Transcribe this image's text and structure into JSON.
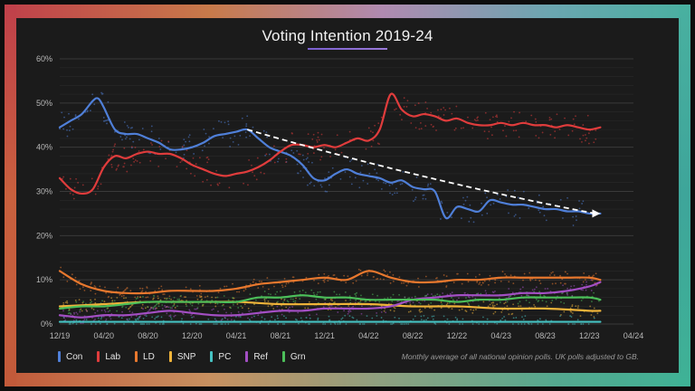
{
  "title": "Voting Intention 2019-24",
  "footnote": "Monthly average of all national opinion polls. UK polls adjusted to GB.",
  "chart_data": {
    "type": "line",
    "title": "Voting Intention 2019-24",
    "x_ticks": [
      "12/19",
      "04/20",
      "08/20",
      "12/20",
      "04/21",
      "08/21",
      "12/21",
      "04/22",
      "08/22",
      "12/22",
      "04/23",
      "08/23",
      "12/23",
      "04/24"
    ],
    "y_ticks": [
      "0%",
      "10%",
      "20%",
      "30%",
      "40%",
      "50%",
      "60%"
    ],
    "ylim": [
      0,
      60
    ],
    "xlim": [
      0,
      52
    ],
    "grid": true,
    "legend_position": "bottom-left",
    "x_month_index_labels": "months since 12/19",
    "series": [
      {
        "name": "Con",
        "color": "#4f7fd8",
        "x": [
          0,
          1,
          2,
          3,
          3.5,
          4,
          5,
          6,
          7,
          8,
          9,
          10,
          11,
          12,
          13,
          14,
          15,
          16,
          17,
          18,
          19,
          20,
          21,
          22,
          23,
          24,
          25,
          26,
          27,
          28,
          29,
          30,
          31,
          32,
          33,
          34,
          35,
          36,
          37,
          38,
          39,
          40,
          41,
          42,
          43,
          44,
          45,
          46,
          47,
          48,
          49
        ],
        "values": [
          44.5,
          46,
          47.5,
          50.5,
          51,
          49,
          44,
          43,
          43,
          42,
          41,
          39.5,
          39.5,
          40,
          41,
          42.5,
          43,
          43.5,
          44,
          42,
          40,
          39,
          38,
          36,
          33,
          32.5,
          34,
          35,
          34,
          33.5,
          33,
          32,
          32.5,
          31,
          30.5,
          30,
          24,
          26.5,
          26,
          25.5,
          28,
          27.5,
          27,
          27,
          26.5,
          26,
          26,
          25.5,
          25.5,
          25,
          25
        ]
      },
      {
        "name": "Lab",
        "color": "#e03c3c",
        "x": [
          0,
          1,
          2,
          3,
          4,
          5,
          6,
          7,
          8,
          9,
          10,
          11,
          12,
          13,
          14,
          15,
          16,
          17,
          18,
          19,
          20,
          21,
          22,
          23,
          24,
          25,
          26,
          27,
          28,
          29,
          30,
          31,
          32,
          33,
          34,
          35,
          36,
          37,
          38,
          39,
          40,
          41,
          42,
          43,
          44,
          45,
          46,
          47,
          48,
          49
        ],
        "values": [
          33,
          30.5,
          29.5,
          30.5,
          35.5,
          38,
          37.5,
          38.5,
          39,
          38.5,
          38.5,
          37.5,
          36,
          35,
          34,
          33.5,
          34,
          34.5,
          35.5,
          37,
          39,
          40.5,
          40.5,
          40,
          40.5,
          40,
          41,
          42,
          41.5,
          44,
          52,
          48.5,
          47,
          47.5,
          47,
          46,
          46.5,
          45.5,
          45,
          45,
          45.5,
          45,
          45.5,
          45,
          45,
          44.5,
          45,
          44.5,
          44,
          44.5
        ]
      },
      {
        "name": "LD",
        "color": "#e8782e",
        "x": [
          0,
          2,
          4,
          6,
          8,
          10,
          12,
          14,
          16,
          18,
          20,
          22,
          24,
          26,
          28,
          30,
          32,
          34,
          36,
          38,
          40,
          42,
          44,
          46,
          48,
          49
        ],
        "values": [
          12,
          9,
          7.5,
          7,
          7,
          7.5,
          7.5,
          7.5,
          8,
          9,
          9.5,
          10,
          10.5,
          10,
          12,
          10.5,
          9.5,
          9.5,
          10,
          10,
          10.5,
          10.5,
          10.5,
          10.5,
          10.5,
          10
        ]
      },
      {
        "name": "SNP",
        "color": "#f0b43a",
        "x": [
          0,
          4,
          8,
          12,
          16,
          20,
          24,
          28,
          32,
          36,
          40,
          44,
          48,
          49
        ],
        "values": [
          4,
          4.5,
          5,
          5,
          5,
          4.5,
          4.5,
          4.5,
          4,
          4,
          3.5,
          3.5,
          3,
          3
        ]
      },
      {
        "name": "PC",
        "color": "#46c2c2",
        "x": [
          0,
          8,
          16,
          24,
          32,
          40,
          49
        ],
        "values": [
          0.5,
          0.5,
          0.5,
          0.5,
          0.5,
          0.5,
          0.5
        ]
      },
      {
        "name": "Ref",
        "color": "#a34fc4",
        "x": [
          0,
          2,
          4,
          6,
          8,
          10,
          12,
          14,
          16,
          18,
          20,
          22,
          24,
          26,
          28,
          30,
          32,
          34,
          36,
          38,
          40,
          42,
          44,
          46,
          48,
          49
        ],
        "values": [
          2,
          1.5,
          2,
          2,
          2.5,
          3,
          2.5,
          2,
          2,
          2.5,
          3,
          3,
          3.5,
          3.5,
          3.5,
          4,
          5.5,
          6,
          6.5,
          6.5,
          6.5,
          7,
          7,
          7.5,
          8.5,
          9.5
        ]
      },
      {
        "name": "Grn",
        "color": "#4cbf5a",
        "x": [
          0,
          2,
          4,
          6,
          8,
          10,
          12,
          14,
          16,
          18,
          20,
          22,
          24,
          26,
          28,
          30,
          32,
          34,
          36,
          38,
          40,
          42,
          44,
          46,
          48,
          49
        ],
        "values": [
          3.5,
          4,
          4,
          4.5,
          5,
          5,
          5,
          5,
          5,
          6,
          6,
          6.5,
          6,
          6,
          5.5,
          5.5,
          5.5,
          5.5,
          5,
          5.5,
          5.5,
          6,
          6,
          6,
          6,
          5.5
        ]
      }
    ],
    "trend_arrow": {
      "from": [
        17,
        44
      ],
      "to": [
        49,
        25
      ],
      "color": "#ffffff",
      "style": "dashed"
    }
  }
}
